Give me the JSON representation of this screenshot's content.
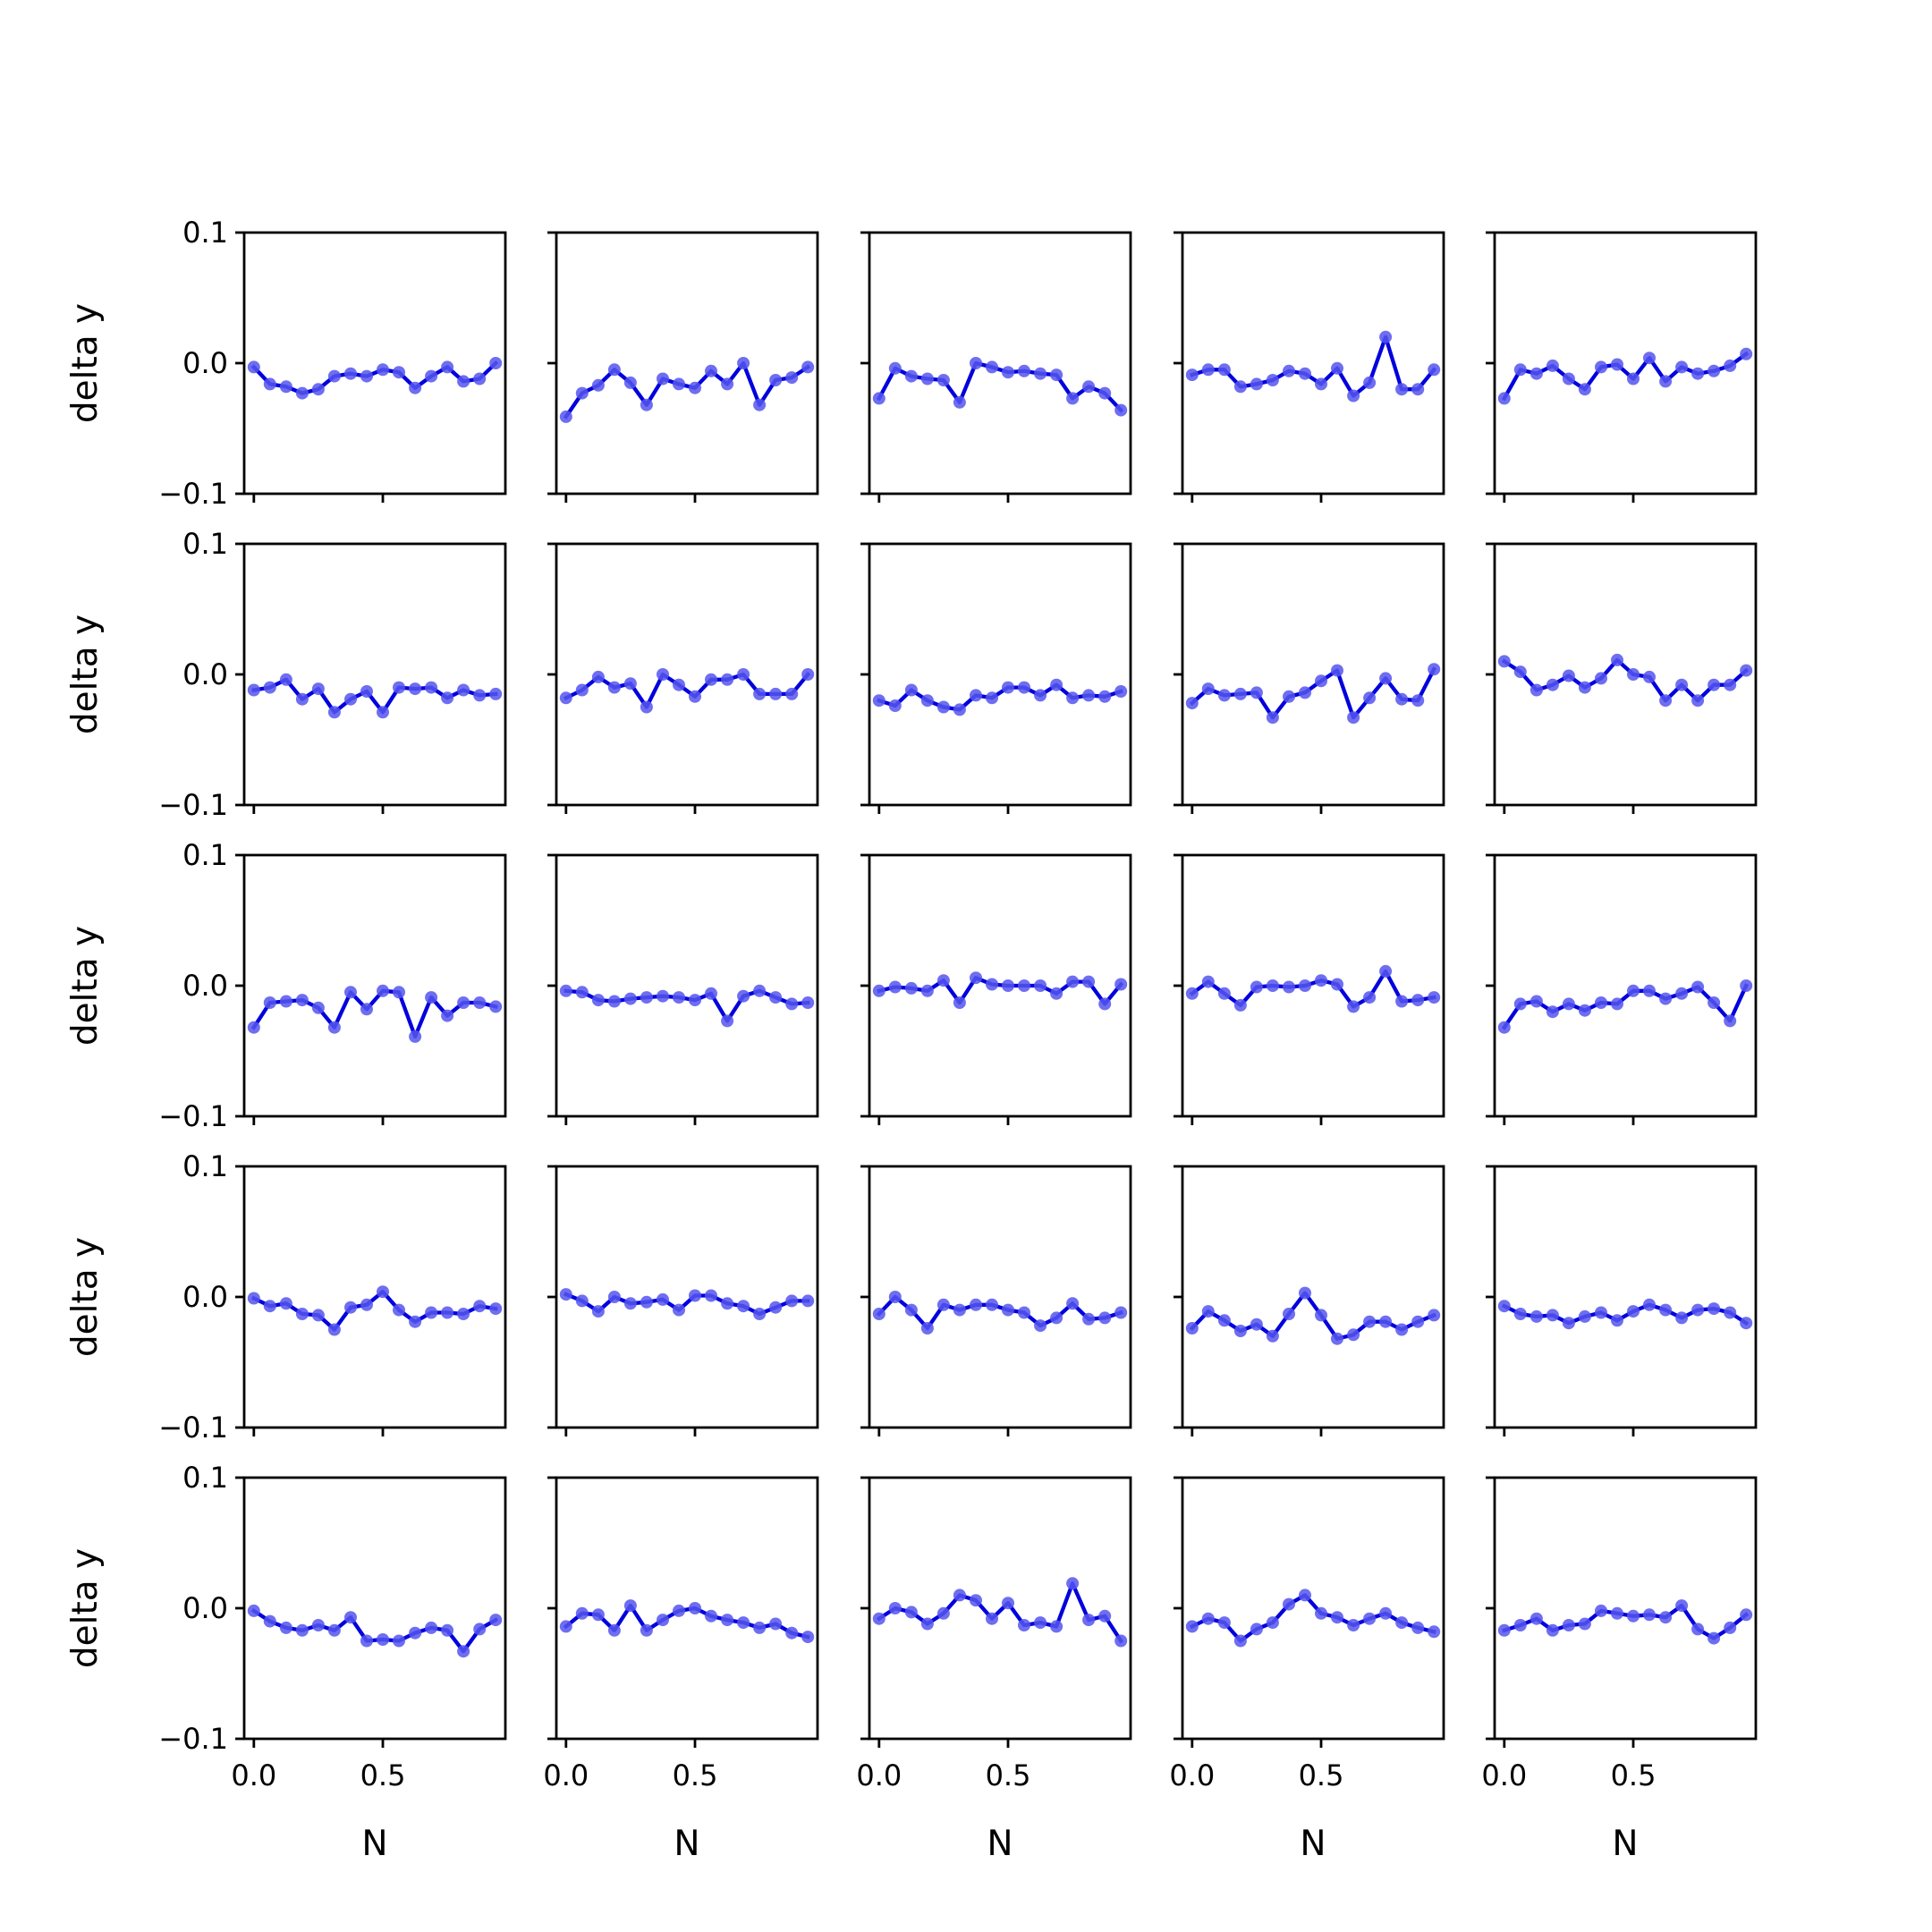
{
  "chart_data": {
    "type": "line",
    "layout": "5x5 subplot grid",
    "ylabel": "delta y",
    "xlabel": "N",
    "ylim": [
      -0.1,
      0.1
    ],
    "yticks": [
      -0.1,
      0.0,
      0.1
    ],
    "ytick_labels": [
      "−0.1",
      "0.0",
      "0.1"
    ],
    "xlim": [
      -0.0375,
      0.975
    ],
    "xticks": [
      0.0,
      0.5
    ],
    "xtick_labels": [
      "0.0",
      "0.5"
    ],
    "sharex": true,
    "sharey": true,
    "grid": false,
    "line_color": "#0000dd",
    "marker_color": "#5555ee",
    "x": [
      0.0,
      0.0625,
      0.125,
      0.1875,
      0.25,
      0.3125,
      0.375,
      0.4375,
      0.5,
      0.5625,
      0.625,
      0.6875,
      0.75,
      0.8125,
      0.875,
      0.9375
    ],
    "panels": [
      {
        "row": 1,
        "col": 1,
        "values": [
          -0.003,
          -0.016,
          -0.018,
          -0.023,
          -0.02,
          -0.01,
          -0.008,
          -0.01,
          -0.005,
          -0.007,
          -0.019,
          -0.01,
          -0.003,
          -0.014,
          -0.012,
          0.0
        ]
      },
      {
        "row": 1,
        "col": 2,
        "values": [
          -0.041,
          -0.023,
          -0.017,
          -0.005,
          -0.015,
          -0.032,
          -0.012,
          -0.016,
          -0.019,
          -0.006,
          -0.016,
          0.0,
          -0.032,
          -0.013,
          -0.011,
          -0.003
        ]
      },
      {
        "row": 1,
        "col": 3,
        "values": [
          -0.027,
          -0.004,
          -0.01,
          -0.012,
          -0.013,
          -0.03,
          0.0,
          -0.003,
          -0.007,
          -0.006,
          -0.008,
          -0.009,
          -0.027,
          -0.018,
          -0.023,
          -0.036
        ]
      },
      {
        "row": 1,
        "col": 4,
        "values": [
          -0.009,
          -0.005,
          -0.005,
          -0.018,
          -0.016,
          -0.013,
          -0.006,
          -0.008,
          -0.016,
          -0.004,
          -0.025,
          -0.015,
          0.02,
          -0.02,
          -0.02,
          -0.005
        ]
      },
      {
        "row": 1,
        "col": 5,
        "values": [
          -0.027,
          -0.005,
          -0.008,
          -0.002,
          -0.012,
          -0.02,
          -0.003,
          -0.001,
          -0.012,
          0.004,
          -0.014,
          -0.003,
          -0.008,
          -0.006,
          -0.002,
          0.007
        ]
      },
      {
        "row": 2,
        "col": 1,
        "values": [
          -0.012,
          -0.01,
          -0.004,
          -0.019,
          -0.011,
          -0.029,
          -0.019,
          -0.013,
          -0.029,
          -0.01,
          -0.011,
          -0.01,
          -0.018,
          -0.012,
          -0.016,
          -0.015
        ]
      },
      {
        "row": 2,
        "col": 2,
        "values": [
          -0.018,
          -0.012,
          -0.002,
          -0.01,
          -0.007,
          -0.025,
          0.0,
          -0.008,
          -0.017,
          -0.004,
          -0.004,
          0.0,
          -0.015,
          -0.015,
          -0.015,
          0.0
        ]
      },
      {
        "row": 2,
        "col": 3,
        "values": [
          -0.02,
          -0.024,
          -0.012,
          -0.02,
          -0.025,
          -0.027,
          -0.016,
          -0.018,
          -0.01,
          -0.01,
          -0.016,
          -0.008,
          -0.018,
          -0.016,
          -0.017,
          -0.013
        ]
      },
      {
        "row": 2,
        "col": 4,
        "values": [
          -0.022,
          -0.011,
          -0.016,
          -0.015,
          -0.014,
          -0.033,
          -0.017,
          -0.014,
          -0.005,
          0.003,
          -0.033,
          -0.018,
          -0.003,
          -0.019,
          -0.02,
          0.004
        ]
      },
      {
        "row": 2,
        "col": 5,
        "values": [
          0.01,
          0.002,
          -0.012,
          -0.008,
          -0.001,
          -0.01,
          -0.003,
          0.011,
          0.0,
          -0.002,
          -0.02,
          -0.008,
          -0.02,
          -0.008,
          -0.008,
          0.003
        ]
      },
      {
        "row": 3,
        "col": 1,
        "values": [
          -0.032,
          -0.013,
          -0.012,
          -0.011,
          -0.017,
          -0.032,
          -0.005,
          -0.018,
          -0.004,
          -0.005,
          -0.039,
          -0.009,
          -0.023,
          -0.013,
          -0.013,
          -0.016
        ]
      },
      {
        "row": 3,
        "col": 2,
        "values": [
          -0.004,
          -0.005,
          -0.011,
          -0.012,
          -0.01,
          -0.009,
          -0.008,
          -0.009,
          -0.011,
          -0.006,
          -0.027,
          -0.008,
          -0.004,
          -0.009,
          -0.014,
          -0.013
        ]
      },
      {
        "row": 3,
        "col": 3,
        "values": [
          -0.004,
          -0.001,
          -0.002,
          -0.004,
          0.004,
          -0.013,
          0.006,
          0.001,
          0.0,
          0.0,
          0.0,
          -0.006,
          0.003,
          0.003,
          -0.014,
          0.001
        ]
      },
      {
        "row": 3,
        "col": 4,
        "values": [
          -0.006,
          0.003,
          -0.006,
          -0.015,
          -0.001,
          0.0,
          -0.001,
          0.0,
          0.004,
          0.001,
          -0.016,
          -0.009,
          0.011,
          -0.012,
          -0.011,
          -0.009
        ]
      },
      {
        "row": 3,
        "col": 5,
        "values": [
          -0.032,
          -0.014,
          -0.012,
          -0.02,
          -0.014,
          -0.019,
          -0.013,
          -0.014,
          -0.004,
          -0.004,
          -0.01,
          -0.006,
          -0.001,
          -0.013,
          -0.027,
          0.0
        ]
      },
      {
        "row": 4,
        "col": 1,
        "values": [
          -0.001,
          -0.007,
          -0.005,
          -0.013,
          -0.014,
          -0.025,
          -0.008,
          -0.006,
          0.004,
          -0.01,
          -0.019,
          -0.012,
          -0.012,
          -0.013,
          -0.007,
          -0.009
        ]
      },
      {
        "row": 4,
        "col": 2,
        "values": [
          0.002,
          -0.003,
          -0.011,
          0.0,
          -0.005,
          -0.004,
          -0.002,
          -0.01,
          0.001,
          0.001,
          -0.005,
          -0.007,
          -0.013,
          -0.008,
          -0.003,
          -0.003
        ]
      },
      {
        "row": 4,
        "col": 3,
        "values": [
          -0.013,
          0.0,
          -0.01,
          -0.024,
          -0.006,
          -0.01,
          -0.006,
          -0.006,
          -0.01,
          -0.012,
          -0.022,
          -0.016,
          -0.005,
          -0.017,
          -0.016,
          -0.012
        ]
      },
      {
        "row": 4,
        "col": 4,
        "values": [
          -0.024,
          -0.011,
          -0.018,
          -0.026,
          -0.021,
          -0.03,
          -0.013,
          0.003,
          -0.014,
          -0.032,
          -0.029,
          -0.019,
          -0.019,
          -0.025,
          -0.019,
          -0.014
        ]
      },
      {
        "row": 4,
        "col": 5,
        "values": [
          -0.007,
          -0.013,
          -0.015,
          -0.014,
          -0.02,
          -0.015,
          -0.012,
          -0.018,
          -0.011,
          -0.006,
          -0.01,
          -0.016,
          -0.01,
          -0.009,
          -0.012,
          -0.02
        ]
      },
      {
        "row": 5,
        "col": 1,
        "values": [
          -0.002,
          -0.01,
          -0.015,
          -0.017,
          -0.013,
          -0.017,
          -0.007,
          -0.025,
          -0.024,
          -0.025,
          -0.019,
          -0.015,
          -0.017,
          -0.033,
          -0.016,
          -0.009
        ]
      },
      {
        "row": 5,
        "col": 2,
        "values": [
          -0.014,
          -0.004,
          -0.005,
          -0.017,
          0.002,
          -0.017,
          -0.009,
          -0.002,
          0.0,
          -0.006,
          -0.009,
          -0.011,
          -0.015,
          -0.012,
          -0.019,
          -0.022
        ]
      },
      {
        "row": 5,
        "col": 3,
        "values": [
          -0.008,
          0.0,
          -0.003,
          -0.012,
          -0.004,
          0.01,
          0.006,
          -0.008,
          0.004,
          -0.013,
          -0.011,
          -0.014,
          0.019,
          -0.009,
          -0.006,
          -0.025
        ]
      },
      {
        "row": 5,
        "col": 4,
        "values": [
          -0.014,
          -0.008,
          -0.011,
          -0.025,
          -0.016,
          -0.011,
          0.003,
          0.01,
          -0.004,
          -0.007,
          -0.013,
          -0.008,
          -0.004,
          -0.011,
          -0.015,
          -0.018
        ]
      },
      {
        "row": 5,
        "col": 5,
        "values": [
          -0.017,
          -0.013,
          -0.008,
          -0.017,
          -0.013,
          -0.012,
          -0.002,
          -0.004,
          -0.006,
          -0.005,
          -0.007,
          0.002,
          -0.016,
          -0.023,
          -0.015,
          -0.005
        ]
      }
    ]
  }
}
